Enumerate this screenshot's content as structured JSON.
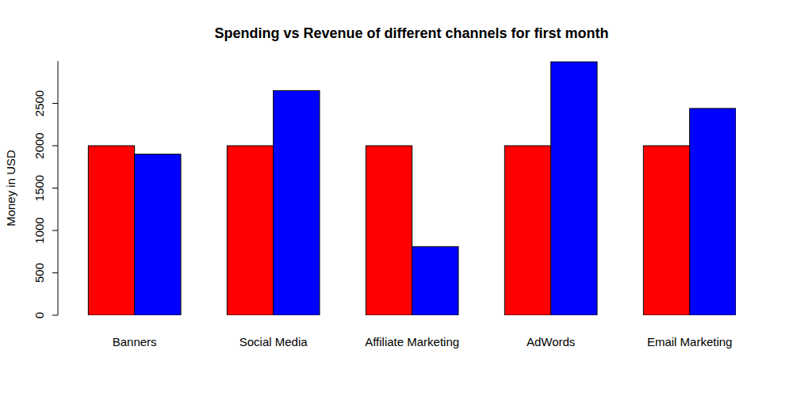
{
  "chart_data": {
    "type": "bar",
    "title": "Spending vs Revenue of different channels for first month",
    "y_label": "Money in USD",
    "categories": [
      "Banners",
      "Social Media",
      "Affiliate Marketing",
      "AdWords",
      "Email Marketing"
    ],
    "series": [
      {
        "color": "#ff0000",
        "values": [
          2000,
          2000,
          2000,
          2000,
          2000
        ]
      },
      {
        "color": "#0000ff",
        "values": [
          1900,
          2650,
          810,
          2990,
          2440
        ]
      }
    ],
    "ylim": [
      0,
      3000
    ],
    "yticks": [
      0,
      500,
      1000,
      1500,
      2000,
      2500
    ],
    "grid": false
  }
}
